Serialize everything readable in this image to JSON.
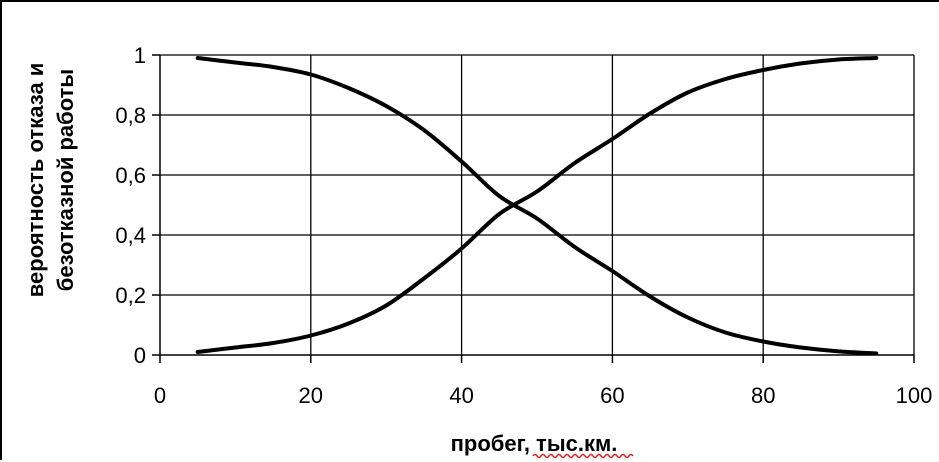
{
  "chart_data": {
    "type": "line",
    "title": "",
    "xlabel": "пробег, тыс.км.",
    "ylabel_line1": "вероятность отказа и",
    "ylabel_line2": "безотказной работы",
    "xlim": [
      0,
      100
    ],
    "ylim": [
      0,
      1
    ],
    "x_ticks": [
      {
        "value": 0,
        "label": "0"
      },
      {
        "value": 20,
        "label": "20"
      },
      {
        "value": 40,
        "label": "40"
      },
      {
        "value": 60,
        "label": "60"
      },
      {
        "value": 80,
        "label": "80"
      },
      {
        "value": 100,
        "label": "100"
      }
    ],
    "y_ticks": [
      {
        "value": 0,
        "label": "0"
      },
      {
        "value": 0.2,
        "label": "0,2"
      },
      {
        "value": 0.4,
        "label": "0,4"
      },
      {
        "value": 0.6,
        "label": "0,6"
      },
      {
        "value": 0.8,
        "label": "0,8"
      },
      {
        "value": 1,
        "label": "1"
      }
    ],
    "grid": true,
    "legend": "none",
    "series": [
      {
        "color": "#000000",
        "x": [
          5,
          10,
          15,
          20,
          25,
          30,
          35,
          40,
          45,
          50,
          55,
          60,
          65,
          70,
          75,
          80,
          85,
          90,
          95
        ],
        "y": [
          0.99,
          0.975,
          0.96,
          0.935,
          0.89,
          0.83,
          0.75,
          0.645,
          0.53,
          0.455,
          0.36,
          0.28,
          0.195,
          0.125,
          0.075,
          0.045,
          0.025,
          0.012,
          0.005
        ]
      },
      {
        "color": "#000000",
        "x": [
          5,
          10,
          15,
          20,
          25,
          30,
          35,
          40,
          45,
          50,
          55,
          60,
          65,
          70,
          75,
          80,
          85,
          90,
          95
        ],
        "y": [
          0.01,
          0.025,
          0.04,
          0.065,
          0.105,
          0.165,
          0.255,
          0.355,
          0.47,
          0.545,
          0.64,
          0.72,
          0.805,
          0.875,
          0.92,
          0.95,
          0.972,
          0.985,
          0.99
        ]
      }
    ]
  }
}
